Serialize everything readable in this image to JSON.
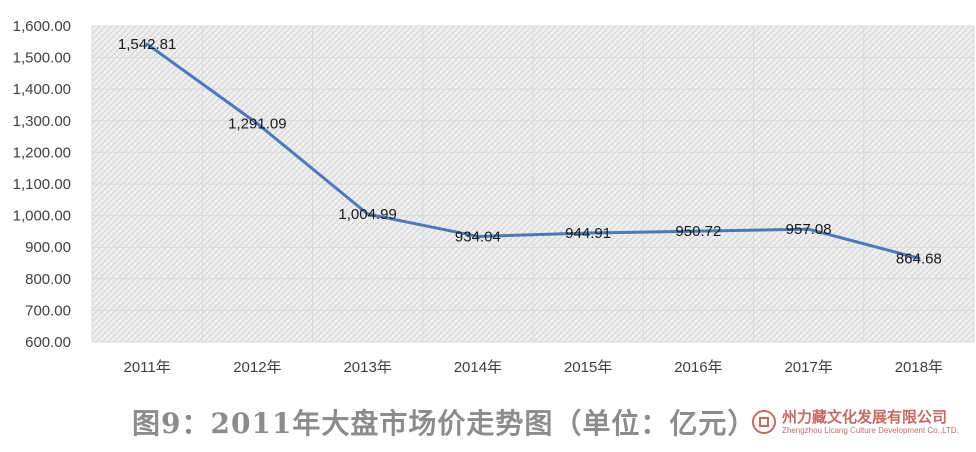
{
  "chart_data": {
    "type": "line",
    "title": "图9：2011年大盘市场价走势图（单位：亿元）",
    "categories": [
      "2011年",
      "2012年",
      "2013年",
      "2014年",
      "2015年",
      "2016年",
      "2017年",
      "2018年"
    ],
    "values": [
      1542.81,
      1291.09,
      1004.99,
      934.04,
      944.91,
      950.72,
      957.08,
      864.68
    ],
    "value_labels": [
      "1,542.81",
      "1,291.09",
      "1,004.99",
      "934.04",
      "944.91",
      "950.72",
      "957.08",
      "864.68"
    ],
    "ylim": [
      600,
      1600
    ],
    "yticks": [
      600,
      700,
      800,
      900,
      1000,
      1100,
      1200,
      1300,
      1400,
      1500,
      1600
    ],
    "ytick_labels": [
      "600.00",
      "700.00",
      "800.00",
      "900.00",
      "1,000.00",
      "1,100.00",
      "1,200.00",
      "1,300.00",
      "1,400.00",
      "1,500.00",
      "1,600.00"
    ],
    "grid": true,
    "legend": "none",
    "line_color": "#4a7ab7",
    "plot_background": "hatched light gray"
  },
  "watermark": {
    "text_cn": "州力藏文化发展有限公司",
    "text_en": "Zhengzhou Licang Culture Development Co.,LTD."
  }
}
